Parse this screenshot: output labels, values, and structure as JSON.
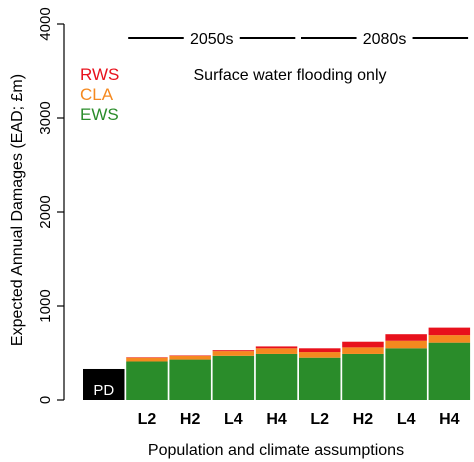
{
  "chart_data": {
    "type": "bar",
    "stacked": true,
    "title": "",
    "xlabel": "Population and climate assumptions",
    "ylabel": "Expected Annual Damages (EAD; £m)",
    "ylim": [
      0,
      4000
    ],
    "yticks": [
      "0",
      "1000",
      "2000",
      "3000",
      "4000"
    ],
    "annotation": "Surface water flooding only",
    "period_labels": [
      "2050s",
      "2080s"
    ],
    "baseline": {
      "label": "PD",
      "value": 330,
      "color": "#000000"
    },
    "categories": [
      "L2",
      "H2",
      "L4",
      "H4",
      "L2",
      "H2",
      "L4",
      "H4"
    ],
    "period_groups": [
      {
        "label": "2050s",
        "category_indices": [
          0,
          1,
          2,
          3
        ]
      },
      {
        "label": "2080s",
        "category_indices": [
          4,
          5,
          6,
          7
        ]
      }
    ],
    "series": [
      {
        "name": "EWS",
        "color": "#2a8c2a",
        "values": [
          410,
          430,
          470,
          490,
          450,
          490,
          550,
          610
        ]
      },
      {
        "name": "CLA",
        "color": "#f5891f",
        "values": [
          40,
          40,
          50,
          60,
          60,
          70,
          80,
          80
        ]
      },
      {
        "name": "RWS",
        "color": "#e8111c",
        "values": [
          5,
          5,
          10,
          20,
          40,
          60,
          70,
          80
        ]
      }
    ],
    "legend": {
      "position": "top-left",
      "order": [
        "RWS",
        "CLA",
        "EWS"
      ]
    },
    "grid": false
  }
}
